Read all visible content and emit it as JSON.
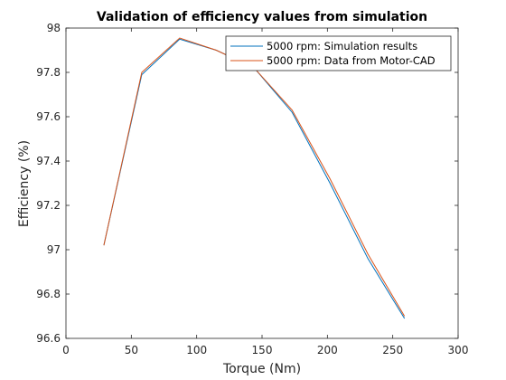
{
  "chart_data": {
    "type": "line",
    "title": "Validation of efficiency values from simulation",
    "xlabel": "Torque (Nm)",
    "ylabel": "Efficiency (%)",
    "xlim": [
      0,
      300
    ],
    "ylim": [
      96.6,
      98
    ],
    "xticks": [
      "0",
      "50",
      "100",
      "150",
      "200",
      "250",
      "300"
    ],
    "yticks": [
      "96.6",
      "96.8",
      "97",
      "97.2",
      "97.4",
      "97.6",
      "97.8",
      "98"
    ],
    "grid": false,
    "legend_position": "top-right",
    "series": [
      {
        "name": "5000 rpm: Simulation results",
        "color": "#0072BD",
        "x": [
          29,
          58,
          87,
          115,
          144,
          173,
          202,
          231,
          259
        ],
        "y": [
          97.02,
          97.79,
          97.95,
          97.9,
          97.82,
          97.62,
          97.3,
          96.96,
          96.69
        ]
      },
      {
        "name": "5000 rpm: Data from Motor-CAD",
        "color": "#D95319",
        "x": [
          29,
          58,
          87,
          115,
          144,
          173,
          202,
          231,
          259
        ],
        "y": [
          97.02,
          97.8,
          97.955,
          97.9,
          97.82,
          97.63,
          97.32,
          96.98,
          96.7
        ]
      }
    ]
  }
}
